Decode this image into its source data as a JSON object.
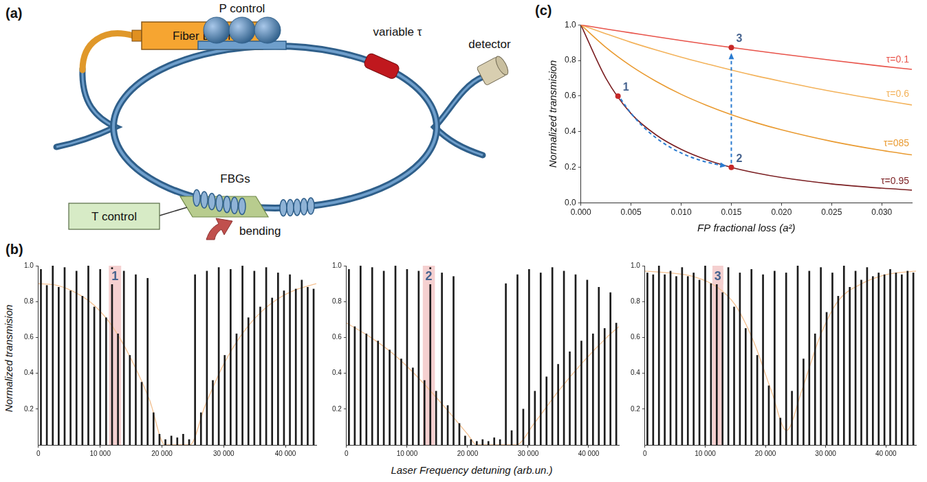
{
  "diagram": {
    "panel_label": "(a)",
    "source": "Fiber Laser",
    "polarization": "P control",
    "attenuator": "variable τ",
    "detector": "detector",
    "gratings": "FBGs",
    "temperature": "T control",
    "bending": "bending"
  },
  "spectra_panel": {
    "panel_label": "(b)",
    "x_label": "Laser Frequency detuning (arb.un.)",
    "y_label": "Normalized transmision"
  },
  "chart_data": [
    {
      "type": "bar",
      "x": [
        400,
        1360,
        2320,
        3280,
        4240,
        5200,
        6160,
        7120,
        8080,
        9040,
        10000,
        10960,
        11920,
        12880,
        13840,
        14800,
        15760,
        16720,
        17680,
        18640,
        19600,
        20560,
        21520,
        22480,
        23440,
        24400,
        25360,
        26320,
        27280,
        28240,
        29200,
        30160,
        31120,
        32080,
        33040,
        34000,
        34960,
        35920,
        36880,
        37840,
        38800,
        39760,
        40720,
        41680,
        42640,
        43600,
        44560
      ],
      "values": [
        0.98,
        0.89,
        1.0,
        0.88,
        0.99,
        0.86,
        0.97,
        0.83,
        1.0,
        0.77,
        0.98,
        0.71,
        0.99,
        0.62,
        0.97,
        0.5,
        0.95,
        0.35,
        0.93,
        0.18,
        0.06,
        0.03,
        0.05,
        0.04,
        0.06,
        0.03,
        0.95,
        0.18,
        0.97,
        0.36,
        0.99,
        0.5,
        0.98,
        0.62,
        1.0,
        0.71,
        0.97,
        0.77,
        0.99,
        0.82,
        0.96,
        0.86,
        0.95,
        0.87,
        0.92,
        0.88,
        0.87
      ],
      "color": "#1c1c1c",
      "envelope": {
        "type": "line",
        "color": "#f4c090",
        "x": [
          0,
          3000,
          6000,
          9000,
          12000,
          15000,
          18000,
          20500,
          24500,
          27000,
          30000,
          33000,
          36000,
          39000,
          42000,
          45000
        ],
        "values": [
          0.9,
          0.89,
          0.85,
          0.78,
          0.66,
          0.48,
          0.25,
          0.0,
          0.0,
          0.22,
          0.45,
          0.62,
          0.74,
          0.82,
          0.87,
          0.9
        ]
      },
      "highlight": {
        "label": "1",
        "x": [
          11400,
          13400
        ],
        "color": "#f5d0d0"
      },
      "xlim": [
        0,
        45000
      ],
      "xticks": [
        0,
        {
          "value": 10000,
          "label": "10 000"
        },
        {
          "value": 20000,
          "label": "20 000"
        },
        {
          "value": 30000,
          "label": "30 000"
        },
        {
          "value": 40000,
          "label": "40 000"
        }
      ],
      "ylim": [
        0,
        1
      ],
      "yticks": [
        0.2,
        0.4,
        0.6,
        0.8,
        {
          "value": 1,
          "label": "1.0"
        }
      ],
      "grid": false
    },
    {
      "type": "bar",
      "x": [
        400,
        1360,
        2320,
        3280,
        4240,
        5200,
        6160,
        7120,
        8080,
        9040,
        10000,
        10960,
        11920,
        12880,
        13840,
        14800,
        15760,
        16720,
        17680,
        18640,
        19600,
        20560,
        21520,
        22480,
        23440,
        24400,
        25360,
        26320,
        27280,
        28240,
        29200,
        30160,
        31120,
        32080,
        33040,
        34000,
        34960,
        35920,
        36880,
        37840,
        38800,
        39760,
        40720,
        41680,
        42640,
        43600,
        44560
      ],
      "values": [
        0.98,
        0.66,
        1.0,
        0.62,
        0.99,
        0.58,
        0.97,
        0.53,
        1.0,
        0.48,
        0.98,
        0.43,
        0.97,
        0.36,
        0.99,
        0.3,
        0.96,
        0.22,
        0.94,
        0.12,
        0.05,
        0.03,
        0.02,
        0.03,
        0.02,
        0.04,
        0.03,
        0.9,
        0.08,
        0.95,
        0.2,
        0.98,
        0.3,
        0.96,
        0.38,
        0.99,
        0.45,
        0.97,
        0.52,
        0.95,
        0.58,
        0.92,
        0.62,
        0.88,
        0.65,
        0.85,
        0.68
      ],
      "color": "#1c1c1c",
      "envelope": {
        "type": "line",
        "color": "#f4c090",
        "x": [
          0,
          4000,
          8000,
          12000,
          16000,
          20000,
          21500,
          28000,
          31000,
          35000,
          39000,
          43000,
          45000
        ],
        "values": [
          0.68,
          0.6,
          0.5,
          0.37,
          0.22,
          0.06,
          0.0,
          0.0,
          0.12,
          0.3,
          0.46,
          0.6,
          0.66
        ]
      },
      "highlight": {
        "label": "2",
        "x": [
          12600,
          14600
        ],
        "color": "#f5d0d0"
      },
      "xlim": [
        0,
        45000
      ],
      "xticks": [
        0,
        {
          "value": 10000,
          "label": "10 000"
        },
        {
          "value": 20000,
          "label": "20 000"
        },
        {
          "value": 30000,
          "label": "30 000"
        },
        {
          "value": 40000,
          "label": "40 000"
        }
      ],
      "ylim": [
        0,
        1
      ],
      "yticks": [
        0.2,
        0.4,
        0.6,
        0.8,
        {
          "value": 1,
          "label": "1.0"
        }
      ],
      "grid": false
    },
    {
      "type": "bar",
      "x": [
        400,
        1360,
        2320,
        3280,
        4240,
        5200,
        6160,
        7120,
        8080,
        9040,
        10000,
        10960,
        11920,
        12880,
        13840,
        14800,
        15760,
        16720,
        17680,
        18640,
        19600,
        20560,
        21520,
        22480,
        23440,
        24400,
        25360,
        26320,
        27280,
        28240,
        29200,
        30160,
        31120,
        32080,
        33040,
        34000,
        34960,
        35920,
        36880,
        37840,
        38800,
        39760,
        40720,
        41680,
        42640,
        43600,
        44560
      ],
      "values": [
        0.96,
        0.95,
        1.0,
        0.95,
        0.97,
        0.94,
        0.99,
        0.94,
        0.96,
        0.92,
        1.0,
        0.9,
        0.97,
        0.85,
        0.99,
        0.77,
        0.96,
        0.65,
        0.98,
        0.5,
        0.95,
        0.33,
        0.97,
        0.15,
        0.96,
        0.3,
        1.0,
        0.48,
        0.97,
        0.62,
        0.99,
        0.74,
        0.96,
        0.83,
        1.0,
        0.88,
        0.97,
        0.92,
        0.99,
        0.94,
        0.96,
        0.95,
        0.98,
        0.96,
        0.95,
        0.97,
        0.96
      ],
      "color": "#1c1c1c",
      "envelope": {
        "type": "line",
        "color": "#f4c090",
        "x": [
          0,
          4000,
          8000,
          12000,
          15000,
          18000,
          21000,
          23500,
          26000,
          29000,
          32000,
          36000,
          40000,
          45000
        ],
        "values": [
          0.97,
          0.96,
          0.94,
          0.88,
          0.78,
          0.58,
          0.3,
          0.08,
          0.3,
          0.6,
          0.8,
          0.9,
          0.95,
          0.97
        ]
      },
      "highlight": {
        "label": "3",
        "x": [
          11200,
          13000
        ],
        "color": "#f5d0d0"
      },
      "xlim": [
        0,
        45000
      ],
      "xticks": [
        0,
        {
          "value": 10000,
          "label": "10 000"
        },
        {
          "value": 20000,
          "label": "20 000"
        },
        {
          "value": 30000,
          "label": "30 000"
        },
        {
          "value": 40000,
          "label": "40 000"
        }
      ],
      "ylim": [
        0,
        1
      ],
      "yticks": [
        0.2,
        0.4,
        0.6,
        0.8,
        {
          "value": 1,
          "label": "1.0"
        }
      ],
      "grid": false
    },
    {
      "type": "line",
      "panel_label": "(c)",
      "x_label": "FP fractional loss (a²)",
      "y_label": "Normalized transmision",
      "x": [
        0,
        0.0025,
        0.005,
        0.0075,
        0.01,
        0.0125,
        0.015,
        0.0175,
        0.02,
        0.025,
        0.03,
        0.033
      ],
      "series": [
        {
          "name": "τ=0.1",
          "color": "#e8534a",
          "values": [
            1,
            0.977,
            0.955,
            0.933,
            0.912,
            0.892,
            0.873,
            0.854,
            0.836,
            0.801,
            0.768,
            0.75
          ]
        },
        {
          "name": "τ=0.6",
          "color": "#f3b25a",
          "values": [
            1,
            0.95,
            0.902,
            0.859,
            0.819,
            0.782,
            0.746,
            0.713,
            0.683,
            0.627,
            0.578,
            0.55
          ]
        },
        {
          "name": "τ=085",
          "color": "#e99a30",
          "values": [
            1,
            0.873,
            0.769,
            0.683,
            0.61,
            0.549,
            0.496,
            0.45,
            0.411,
            0.346,
            0.295,
            0.27
          ]
        },
        {
          "name": "τ=0.95",
          "color": "#7b1f22",
          "values": [
            1,
            0.7,
            0.502,
            0.382,
            0.301,
            0.243,
            0.2,
            0.168,
            0.143,
            0.107,
            0.083,
            0.072
          ]
        }
      ],
      "points": [
        {
          "label": "1",
          "x": 0.0037,
          "y": 0.6
        },
        {
          "label": "2",
          "x": 0.015,
          "y": 0.2
        },
        {
          "label": "3",
          "x": 0.015,
          "y": 0.873
        }
      ],
      "xlim": [
        0,
        0.033
      ],
      "xticks": [
        {
          "value": 0,
          "label": "0.000"
        },
        {
          "value": 0.005,
          "label": "0.005"
        },
        {
          "value": 0.01,
          "label": "0.010"
        },
        {
          "value": 0.015,
          "label": "0.015"
        },
        {
          "value": 0.02,
          "label": "0.020"
        },
        {
          "value": 0.025,
          "label": "0.025"
        },
        {
          "value": 0.03,
          "label": "0.030"
        }
      ],
      "ylim": [
        0,
        1
      ],
      "yticks": [
        {
          "value": 0,
          "label": "0.0"
        },
        0.2,
        0.4,
        0.6,
        0.8,
        {
          "value": 1,
          "label": "1.0"
        }
      ],
      "grid": false
    }
  ]
}
